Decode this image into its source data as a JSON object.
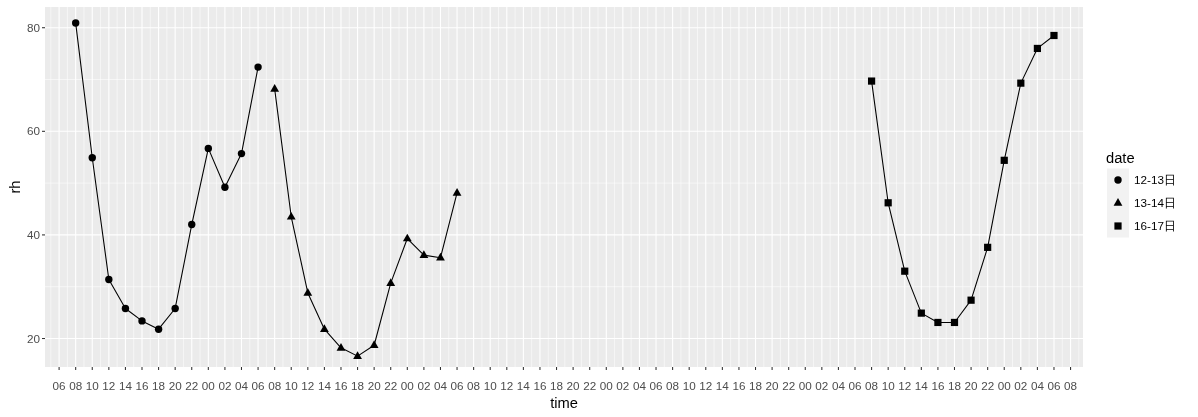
{
  "chart_data": {
    "type": "line",
    "xlabel": "time",
    "ylabel": "rh",
    "legend_title": "date",
    "legend": "right",
    "grid": true,
    "xlim": [
      4.3,
      129.5
    ],
    "ylim": [
      14.5,
      84
    ],
    "yticks": [
      20,
      40,
      60,
      80
    ],
    "xticks": [
      {
        "value": 6,
        "label": "06"
      },
      {
        "value": 8,
        "label": "08"
      },
      10,
      12,
      14,
      16,
      18,
      20,
      22,
      {
        "value": 24,
        "label": "00"
      },
      {
        "value": 26,
        "label": "02"
      },
      {
        "value": 28,
        "label": "04"
      },
      {
        "value": 30,
        "label": "06"
      },
      {
        "value": 32,
        "label": "08"
      },
      {
        "value": 34,
        "label": "10"
      },
      {
        "value": 36,
        "label": "12"
      },
      {
        "value": 38,
        "label": "14"
      },
      {
        "value": 40,
        "label": "16"
      },
      {
        "value": 42,
        "label": "18"
      },
      {
        "value": 44,
        "label": "20"
      },
      {
        "value": 46,
        "label": "22"
      },
      {
        "value": 48,
        "label": "00"
      },
      {
        "value": 50,
        "label": "02"
      },
      {
        "value": 52,
        "label": "04"
      },
      {
        "value": 54,
        "label": "06"
      },
      {
        "value": 56,
        "label": "08"
      },
      {
        "value": 58,
        "label": "10"
      },
      {
        "value": 60,
        "label": "12"
      },
      {
        "value": 62,
        "label": "14"
      },
      {
        "value": 64,
        "label": "16"
      },
      {
        "value": 66,
        "label": "18"
      },
      {
        "value": 68,
        "label": "20"
      },
      {
        "value": 70,
        "label": "22"
      },
      {
        "value": 72,
        "label": "00"
      },
      {
        "value": 74,
        "label": "02"
      },
      {
        "value": 76,
        "label": "04"
      },
      {
        "value": 78,
        "label": "06"
      },
      {
        "value": 80,
        "label": "08"
      },
      {
        "value": 82,
        "label": "10"
      },
      {
        "value": 84,
        "label": "12"
      },
      {
        "value": 86,
        "label": "14"
      },
      {
        "value": 88,
        "label": "16"
      },
      {
        "value": 90,
        "label": "18"
      },
      {
        "value": 92,
        "label": "20"
      },
      {
        "value": 94,
        "label": "22"
      },
      {
        "value": 96,
        "label": "00"
      },
      {
        "value": 98,
        "label": "02"
      },
      {
        "value": 100,
        "label": "04"
      },
      {
        "value": 102,
        "label": "06"
      },
      {
        "value": 104,
        "label": "08"
      },
      {
        "value": 106,
        "label": "10"
      },
      {
        "value": 108,
        "label": "12"
      },
      {
        "value": 110,
        "label": "14"
      },
      {
        "value": 112,
        "label": "16"
      },
      {
        "value": 114,
        "label": "18"
      },
      {
        "value": 116,
        "label": "20"
      },
      {
        "value": 118,
        "label": "22"
      },
      {
        "value": 120,
        "label": "00"
      },
      {
        "value": 122,
        "label": "02"
      },
      {
        "value": 124,
        "label": "04"
      },
      {
        "value": 126,
        "label": "06"
      },
      {
        "value": 128,
        "label": "08"
      }
    ],
    "series": [
      {
        "name": "12-13日",
        "color": "#000000",
        "marker": "circle",
        "x": [
          8,
          10,
          12,
          14,
          16,
          18,
          20,
          22,
          24,
          26,
          28,
          30
        ],
        "values": [
          80.9,
          54.9,
          31.4,
          25.8,
          23.4,
          21.8,
          25.8,
          42.0,
          56.7,
          49.2,
          55.7,
          72.4
        ]
      },
      {
        "name": "13-14日",
        "color": "#000000",
        "marker": "triangle",
        "x": [
          32,
          34,
          36,
          38,
          40,
          42,
          44,
          46,
          48,
          50,
          52,
          54
        ],
        "values": [
          68.2,
          43.5,
          28.8,
          21.8,
          18.2,
          16.6,
          18.7,
          30.7,
          39.3,
          36.1,
          35.6,
          48.1
        ]
      },
      {
        "name": "16-17日",
        "color": "#000000",
        "marker": "square",
        "x": [
          104,
          106,
          108,
          110,
          112,
          114,
          116,
          118,
          120,
          122,
          124,
          126
        ],
        "values": [
          69.7,
          46.2,
          33.0,
          24.9,
          23.1,
          23.1,
          27.4,
          37.6,
          54.4,
          69.3,
          76.0,
          78.5
        ]
      }
    ]
  }
}
